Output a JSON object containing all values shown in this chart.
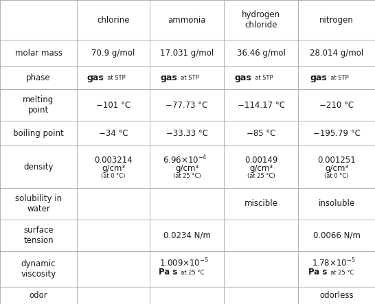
{
  "columns": [
    "",
    "chlorine",
    "ammonia",
    "hydrogen\nchloride",
    "nitrogen"
  ],
  "rows": [
    {
      "label": "molar mass",
      "values": [
        "70.9 g/mol",
        "17.031 g/mol",
        "36.46 g/mol",
        "28.014 g/mol"
      ]
    },
    {
      "label": "phase",
      "values": [
        "gas_stp",
        "gas_stp",
        "gas_stp",
        "gas_stp"
      ]
    },
    {
      "label": "melting\npoint",
      "values": [
        "−101 °C",
        "−77.73 °C",
        "−114.17 °C",
        "−210 °C"
      ]
    },
    {
      "label": "boiling point",
      "values": [
        "−34 °C",
        "−33.33 °C",
        "−85 °C",
        "−195.79 °C"
      ]
    },
    {
      "label": "density",
      "values": [
        "density_cl",
        "density_nh3",
        "density_hcl",
        "density_n2"
      ]
    },
    {
      "label": "solubility in\nwater",
      "values": [
        "",
        "",
        "miscible",
        "insoluble"
      ]
    },
    {
      "label": "surface\ntension",
      "values": [
        "",
        "0.0234 N/m",
        "",
        "0.0066 N/m"
      ]
    },
    {
      "label": "dynamic\nviscosity",
      "values": [
        "",
        "viscosity_nh3",
        "",
        "viscosity_n2"
      ]
    },
    {
      "label": "odor",
      "values": [
        "",
        "",
        "",
        "odorless"
      ]
    }
  ],
  "background_color": "#ffffff",
  "grid_color": "#b0b0b0",
  "text_color": "#1a1a1a",
  "font_size": 8.5
}
